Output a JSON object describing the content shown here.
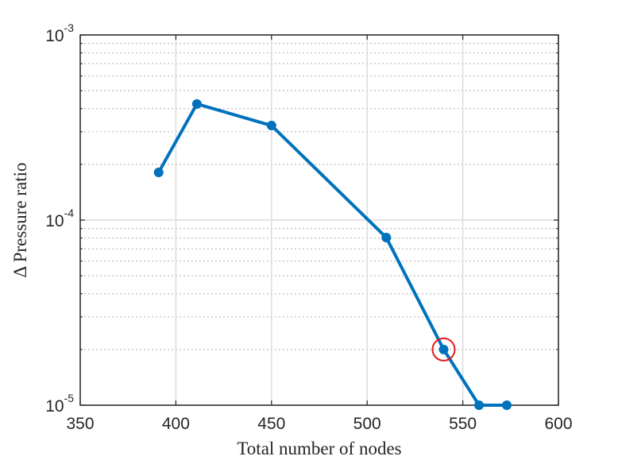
{
  "chart_data": {
    "type": "line",
    "xlabel": "Total number of nodes",
    "ylabel": "Δ Pressure ratio",
    "xlim": [
      350,
      600
    ],
    "xticks": [
      350,
      400,
      450,
      500,
      550,
      600
    ],
    "ylim": [
      1e-05,
      0.001
    ],
    "log_y": true,
    "yticks": [
      {
        "value": 1e-05,
        "label": "10",
        "exponent": "-5"
      },
      {
        "value": 0.0001,
        "label": "10",
        "exponent": "-4"
      },
      {
        "value": 0.001,
        "label": "10",
        "exponent": "-3"
      }
    ],
    "yminorticks": [
      2e-05,
      3e-05,
      4e-05,
      5e-05,
      6e-05,
      7e-05,
      8e-05,
      9e-05,
      0.0002,
      0.0003,
      0.0004,
      0.0005,
      0.0006,
      0.0007,
      0.0008,
      0.0009
    ],
    "grid": true,
    "x": [
      391,
      411,
      450,
      510,
      540,
      558.5,
      573
    ],
    "series": [
      {
        "color": "#0072bd",
        "values": [
          0.000181,
          0.000424,
          0.000324,
          8.05e-05,
          2e-05,
          1e-05,
          1e-05
        ]
      }
    ],
    "highlight": {
      "x": 540,
      "y": 2e-05,
      "color": "#e41a1c"
    }
  }
}
